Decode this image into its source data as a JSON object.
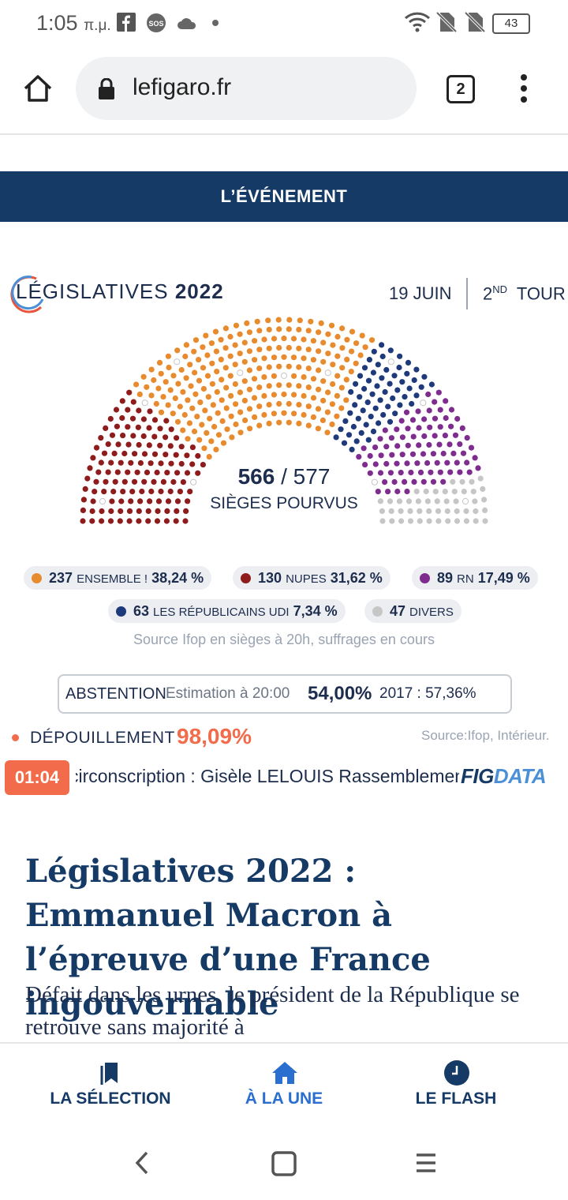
{
  "status_bar": {
    "time": "1:05",
    "time_suffix": "π.μ.",
    "battery": "43"
  },
  "browser": {
    "url": "lefigaro.fr",
    "tab_count": "2"
  },
  "banner": {
    "label": "L’ÉVÉNEMENT"
  },
  "header": {
    "title_light": "LÉGISLATIVES",
    "title_bold": "2022",
    "date": "19 JUIN",
    "tour_num": "2",
    "tour_sup": "ND",
    "tour_word": "TOUR"
  },
  "chart_data": {
    "type": "hemicycle",
    "filled": "566",
    "total": "577",
    "label": "SIÈGES POURVUS",
    "parties": [
      {
        "seats": "237",
        "name": "ENSEMBLE !",
        "pct": "38,24 %",
        "color": "#e88a2e"
      },
      {
        "seats": "130",
        "name": "NUPES",
        "pct": "31,62 %",
        "color": "#8e1c1c"
      },
      {
        "seats": "89",
        "name": "RN",
        "pct": "17,49 %",
        "color": "#7e2d8f"
      },
      {
        "seats": "63",
        "name": "LES RÉPUBLICAINS UDI",
        "pct": "7,34 %",
        "color": "#1f3a7a"
      },
      {
        "seats": "47",
        "name": "DIVERS",
        "pct": "",
        "color": "#c6c6c6"
      }
    ]
  },
  "source1": "Source Ifop en sièges à 20h, suffrages en cours",
  "abstention": {
    "label": "ABSTENTION",
    "estimate": "Estimation à 20:00",
    "value": "54,00%",
    "previous": "2017 : 57,36%"
  },
  "depouillement": {
    "label": "DÉPOUILLEMENT",
    "value": "98,09%",
    "source": "Source:Ifop, Intérieur."
  },
  "ticker": {
    "time": "01:04",
    "text": "circonscription : Gisèle LELOUIS Rassemblement National",
    "brand_a": "FIG",
    "brand_b": "DATA"
  },
  "article": {
    "headline": "Législatives 2022 : Emmanuel Macron à l’épreuve d’une France ingouvernable",
    "lede": "Défait dans les urnes, le président de la République se retrouve sans majorité à"
  },
  "bottom_nav": {
    "items": [
      {
        "label": "LA SÉLECTION",
        "icon": "bookmark-icon"
      },
      {
        "label": "À LA UNE",
        "icon": "home-icon"
      },
      {
        "label": "LE FLASH",
        "icon": "clock-icon"
      }
    ]
  }
}
